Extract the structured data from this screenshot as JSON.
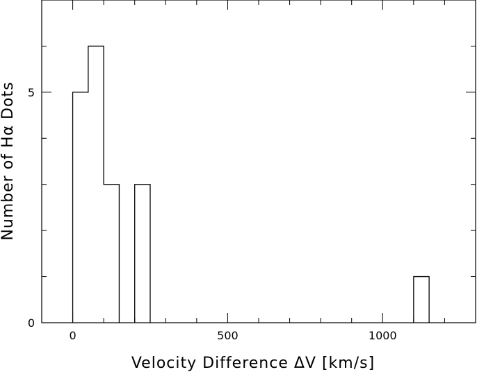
{
  "chart_data": {
    "type": "bar",
    "subtype": "histogram",
    "xlabel": "Velocity Difference ΔV [km/s]",
    "ylabel": "Number of Hα Dots",
    "xlim": [
      -100,
      1300
    ],
    "ylim": [
      0,
      7
    ],
    "x_ticks": [
      0,
      500,
      1000
    ],
    "y_ticks": [
      0,
      5
    ],
    "x_minor_step": 100,
    "y_minor_step": 1,
    "grid": false,
    "bins": [
      {
        "x0": 0,
        "x1": 50,
        "count": 5
      },
      {
        "x0": 50,
        "x1": 100,
        "count": 6
      },
      {
        "x0": 100,
        "x1": 150,
        "count": 3
      },
      {
        "x0": 150,
        "x1": 200,
        "count": 0
      },
      {
        "x0": 200,
        "x1": 250,
        "count": 3
      },
      {
        "x0": 1100,
        "x1": 1150,
        "count": 1
      }
    ],
    "line_color": "#000000"
  }
}
